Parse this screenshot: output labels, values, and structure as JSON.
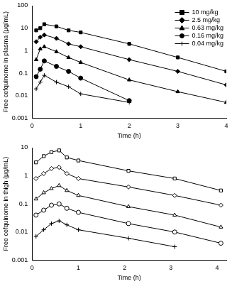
{
  "chart_data": [
    {
      "type": "line",
      "xlabel": "Time (h)",
      "ylabel": "Free cefquinome in plasma (μg/mL)",
      "x": [
        0.083,
        0.167,
        0.25,
        0.5,
        0.75,
        1,
        2,
        3,
        4
      ],
      "series": [
        {
          "name": "10 mg/kg",
          "color": "#000000",
          "marker": "square",
          "values": [
            8,
            10,
            15,
            12,
            8,
            6.5,
            2,
            0.5,
            0.12
          ]
        },
        {
          "name": "2.5 mg/kg",
          "color": "#000000",
          "marker": "diamond",
          "values": [
            2.5,
            4,
            5,
            3.5,
            2,
            1.5,
            0.4,
            0.12,
            0.03
          ]
        },
        {
          "name": "0.63 mg/kg",
          "color": "#000000",
          "marker": "triangle",
          "values": [
            0.4,
            1.2,
            1.5,
            0.9,
            0.5,
            0.3,
            0.05,
            0.015,
            0.005
          ]
        },
        {
          "name": "0.16 mg/kg",
          "color": "#000000",
          "marker": "circle",
          "values": [
            0.07,
            0.15,
            0.35,
            0.2,
            0.12,
            0.06,
            0.006,
            null,
            null
          ]
        },
        {
          "name": "0.04 mg/kg",
          "color": "#000000",
          "marker": "plus",
          "values": [
            0.02,
            0.04,
            0.08,
            0.04,
            0.025,
            0.012,
            0.005,
            null,
            null
          ]
        }
      ],
      "xlim": [
        0,
        4
      ],
      "xticks": [
        0,
        1,
        2,
        3,
        4
      ],
      "ylim": [
        0.001,
        100
      ],
      "yticks": [
        0.001,
        0.01,
        0.1,
        1,
        10,
        100
      ],
      "log": "y",
      "grid": false,
      "legend": "upper right"
    },
    {
      "type": "line",
      "xlabel": "Time (h)",
      "ylabel": "Free cefquinome in thigh (μg/mL)",
      "x": [
        0.083,
        0.25,
        0.417,
        0.583,
        0.75,
        1,
        2.083,
        3.083,
        4.083
      ],
      "series": [
        {
          "name": "10 mg/kg",
          "color": "#000000",
          "marker": "square_open",
          "values": [
            3,
            5,
            7,
            8,
            4.5,
            3.5,
            1.5,
            0.8,
            0.3
          ]
        },
        {
          "name": "2.5 mg/kg",
          "color": "#000000",
          "marker": "diamond_open",
          "values": [
            0.8,
            1.2,
            1.8,
            2,
            1.2,
            0.8,
            0.4,
            0.2,
            0.09
          ]
        },
        {
          "name": "0.63 mg/kg",
          "color": "#000000",
          "marker": "triangle_open",
          "values": [
            0.15,
            0.25,
            0.35,
            0.45,
            0.3,
            0.2,
            0.08,
            0.04,
            0.015
          ]
        },
        {
          "name": "0.16 mg/kg",
          "color": "#000000",
          "marker": "circle_open",
          "values": [
            0.04,
            0.06,
            0.09,
            0.1,
            0.07,
            0.05,
            0.02,
            0.01,
            0.004
          ]
        },
        {
          "name": "0.04 mg/kg",
          "color": "#000000",
          "marker": "plus",
          "values": [
            0.007,
            0.012,
            0.02,
            0.025,
            0.018,
            0.012,
            0.006,
            0.003,
            null
          ]
        }
      ],
      "xlim": [
        0,
        4.2
      ],
      "xticks": [
        0,
        1,
        2,
        3,
        4
      ],
      "ylim": [
        0.001,
        10
      ],
      "yticks": [
        0.001,
        0.01,
        0.1,
        1,
        10
      ],
      "log": "y",
      "grid": false
    }
  ]
}
